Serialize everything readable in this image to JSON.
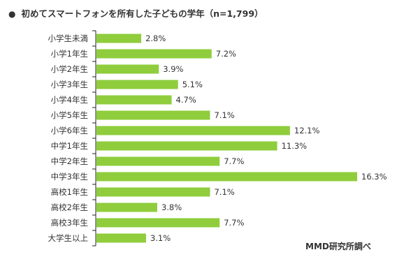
{
  "title": "初めてスマートフォンを所有した子どもの学年（n=1,799）",
  "source": "MMD研究所調べ",
  "colors": {
    "bar": "#8fcd3c",
    "axis": "#222222",
    "text": "#333333"
  },
  "chart_data": {
    "type": "bar",
    "orientation": "horizontal",
    "title": "初めてスマートフォンを所有した子どもの学年（n=1,799）",
    "value_unit": "%",
    "categories": [
      "小学生未満",
      "小学1年生",
      "小学2年生",
      "小学3年生",
      "小学4年生",
      "小学5年生",
      "小学6年生",
      "中学1年生",
      "中学2年生",
      "中学3年生",
      "高校1年生",
      "高校2年生",
      "高校3年生",
      "大学生以上"
    ],
    "values": [
      2.8,
      7.2,
      3.9,
      5.1,
      4.7,
      7.1,
      12.1,
      11.3,
      7.7,
      16.3,
      7.1,
      3.8,
      7.7,
      3.1
    ],
    "labels": [
      "2.8%",
      "7.2%",
      "3.9%",
      "5.1%",
      "4.7%",
      "7.1%",
      "12.1%",
      "11.3%",
      "7.7%",
      "16.3%",
      "7.1%",
      "3.8%",
      "7.7%",
      "3.1%"
    ],
    "xlim": [
      0,
      16.3
    ],
    "grid": false,
    "legend": "none"
  }
}
